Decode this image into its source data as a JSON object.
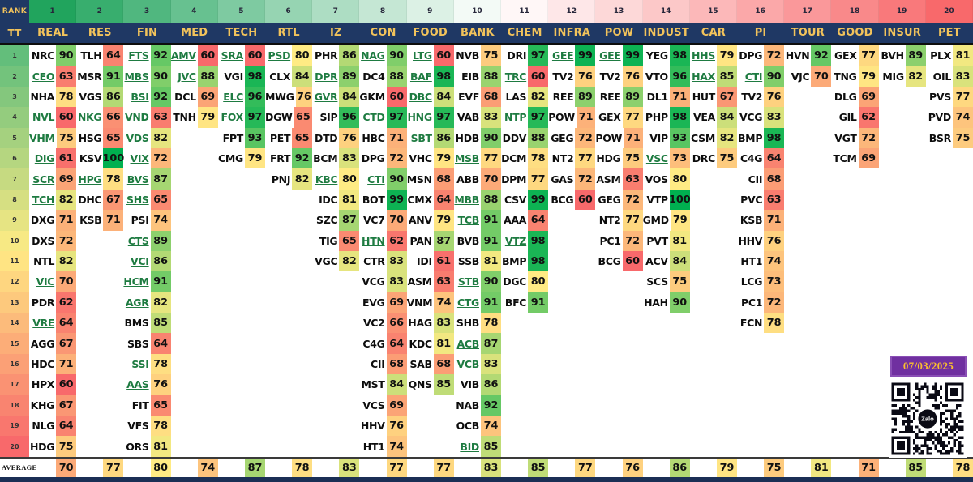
{
  "header": {
    "rank_label": "RANK",
    "tt_label": "TT"
  },
  "average_label": "AVERAGE",
  "date_badge": "07/03/2025",
  "qr_label": "Zalo",
  "colors": {
    "header_bg": "#1F3864",
    "header_text": "#F2C35B",
    "link_green": "#1E7B41",
    "badge_bg": "#7030A0",
    "badge_text": "#FBC02D",
    "scale_low": "#F8696B",
    "scale_mid": "#FFEB84",
    "scale_high": "#00B050"
  },
  "chart_data": {
    "type": "heatmap",
    "rank_ticks": [
      1,
      2,
      3,
      4,
      5,
      6,
      7,
      8,
      9,
      10,
      11,
      12,
      13,
      14,
      15,
      16,
      17,
      18,
      19,
      20
    ],
    "row_ticks": [
      1,
      2,
      3,
      4,
      5,
      6,
      7,
      8,
      9,
      10,
      11,
      12,
      13,
      14,
      15,
      16,
      17,
      18,
      19,
      20
    ],
    "score_scale": {
      "min": 60,
      "mid": 80,
      "max": 100
    },
    "sectors": [
      {
        "name": "REAL",
        "average": 70,
        "cells": [
          [
            "NRC",
            90,
            0
          ],
          [
            "CEO",
            63,
            1
          ],
          [
            "NHA",
            78,
            0
          ],
          [
            "NVL",
            60,
            1
          ],
          [
            "VHM",
            75,
            1
          ],
          [
            "DIG",
            61,
            1
          ],
          [
            "SCR",
            69,
            1
          ],
          [
            "TCH",
            82,
            1
          ],
          [
            "DXG",
            71,
            0
          ],
          [
            "DXS",
            72,
            0
          ],
          [
            "NTL",
            82,
            0
          ],
          [
            "VIC",
            70,
            1
          ],
          [
            "PDR",
            62,
            0
          ],
          [
            "VRE",
            64,
            1
          ],
          [
            "AGG",
            67,
            0
          ],
          [
            "HDC",
            71,
            0
          ],
          [
            "HPX",
            60,
            0
          ],
          [
            "KHG",
            67,
            0
          ],
          [
            "NLG",
            64,
            0
          ],
          [
            "HDG",
            75,
            0
          ]
        ]
      },
      {
        "name": "RES",
        "average": 77,
        "cells": [
          [
            "TLH",
            64,
            0
          ],
          [
            "MSR",
            91,
            0
          ],
          [
            "VGS",
            86,
            0
          ],
          [
            "NKG",
            66,
            1
          ],
          [
            "HSG",
            65,
            0
          ],
          [
            "KSV",
            100,
            0
          ],
          [
            "HPG",
            78,
            1
          ],
          [
            "DHC",
            67,
            0
          ],
          [
            "KSB",
            71,
            0
          ]
        ]
      },
      {
        "name": "FIN",
        "average": 80,
        "cells": [
          [
            "FTS",
            92,
            1
          ],
          [
            "MBS",
            90,
            1
          ],
          [
            "BSI",
            92,
            1
          ],
          [
            "VND",
            63,
            1
          ],
          [
            "VDS",
            82,
            1
          ],
          [
            "VIX",
            72,
            1
          ],
          [
            "BVS",
            87,
            1
          ],
          [
            "SHS",
            65,
            1
          ],
          [
            "PSI",
            74,
            0
          ],
          [
            "CTS",
            89,
            1
          ],
          [
            "VCI",
            86,
            1
          ],
          [
            "HCM",
            91,
            1
          ],
          [
            "AGR",
            82,
            1
          ],
          [
            "BMS",
            85,
            0
          ],
          [
            "SBS",
            64,
            0
          ],
          [
            "SSI",
            78,
            1
          ],
          [
            "AAS",
            76,
            1
          ],
          [
            "FIT",
            65,
            0
          ],
          [
            "VFS",
            78,
            0
          ],
          [
            "ORS",
            81,
            0
          ]
        ]
      },
      {
        "name": "MED",
        "average": 74,
        "cells": [
          [
            "AMV",
            60,
            1
          ],
          [
            "JVC",
            88,
            1
          ],
          [
            "DCL",
            69,
            0
          ],
          [
            "TNH",
            79,
            0
          ]
        ]
      },
      {
        "name": "TECH",
        "average": 87,
        "cells": [
          [
            "SRA",
            60,
            1
          ],
          [
            "VGI",
            98,
            0
          ],
          [
            "ELC",
            96,
            1
          ],
          [
            "FOX",
            97,
            1
          ],
          [
            "FPT",
            93,
            0
          ],
          [
            "CMG",
            79,
            0
          ]
        ]
      },
      {
        "name": "RTL",
        "average": 78,
        "cells": [
          [
            "PSD",
            80,
            1
          ],
          [
            "CLX",
            84,
            0
          ],
          [
            "MWG",
            76,
            0
          ],
          [
            "DGW",
            65,
            0
          ],
          [
            "PET",
            65,
            0
          ],
          [
            "FRT",
            92,
            0
          ],
          [
            "PNJ",
            82,
            0
          ]
        ]
      },
      {
        "name": "IZ",
        "average": 83,
        "cells": [
          [
            "PHR",
            86,
            0
          ],
          [
            "DPR",
            89,
            1
          ],
          [
            "GVR",
            84,
            1
          ],
          [
            "SIP",
            96,
            0
          ],
          [
            "DTD",
            76,
            0
          ],
          [
            "BCM",
            83,
            0
          ],
          [
            "KBC",
            80,
            1
          ],
          [
            "IDC",
            81,
            0
          ],
          [
            "SZC",
            87,
            0
          ],
          [
            "TIG",
            65,
            0
          ],
          [
            "VGC",
            82,
            0
          ]
        ]
      },
      {
        "name": "CON",
        "average": 77,
        "cells": [
          [
            "NAG",
            90,
            1
          ],
          [
            "DC4",
            88,
            0
          ],
          [
            "GKM",
            60,
            0
          ],
          [
            "CTD",
            97,
            1
          ],
          [
            "HBC",
            71,
            0
          ],
          [
            "DPG",
            72,
            0
          ],
          [
            "CTI",
            90,
            1
          ],
          [
            "BOT",
            99,
            0
          ],
          [
            "VC7",
            70,
            0
          ],
          [
            "HTN",
            62,
            1
          ],
          [
            "CTR",
            83,
            0
          ],
          [
            "VCG",
            83,
            0
          ],
          [
            "EVG",
            69,
            0
          ],
          [
            "VC2",
            66,
            0
          ],
          [
            "C4G",
            64,
            0
          ],
          [
            "CII",
            68,
            0
          ],
          [
            "MST",
            84,
            0
          ],
          [
            "VCS",
            69,
            0
          ],
          [
            "HHV",
            76,
            0
          ],
          [
            "HT1",
            74,
            0
          ]
        ]
      },
      {
        "name": "FOOD",
        "average": 77,
        "cells": [
          [
            "LTG",
            60,
            1
          ],
          [
            "BAF",
            98,
            1
          ],
          [
            "DBC",
            84,
            1
          ],
          [
            "HNG",
            97,
            1
          ],
          [
            "SBT",
            86,
            1
          ],
          [
            "VHC",
            79,
            0
          ],
          [
            "MSN",
            68,
            0
          ],
          [
            "CMX",
            64,
            0
          ],
          [
            "ANV",
            79,
            0
          ],
          [
            "PAN",
            87,
            0
          ],
          [
            "IDI",
            61,
            0
          ],
          [
            "ASM",
            63,
            0
          ],
          [
            "VNM",
            74,
            0
          ],
          [
            "HAG",
            83,
            0
          ],
          [
            "KDC",
            81,
            0
          ],
          [
            "SAB",
            68,
            0
          ],
          [
            "QNS",
            85,
            0
          ]
        ]
      },
      {
        "name": "BANK",
        "average": 83,
        "cells": [
          [
            "NVB",
            75,
            0
          ],
          [
            "EIB",
            88,
            0
          ],
          [
            "EVF",
            68,
            0
          ],
          [
            "VAB",
            83,
            0
          ],
          [
            "HDB",
            90,
            0
          ],
          [
            "MSB",
            77,
            1
          ],
          [
            "ABB",
            70,
            0
          ],
          [
            "MBB",
            88,
            1
          ],
          [
            "TCB",
            91,
            1
          ],
          [
            "BVB",
            91,
            0
          ],
          [
            "SSB",
            81,
            0
          ],
          [
            "STB",
            90,
            1
          ],
          [
            "CTG",
            91,
            1
          ],
          [
            "SHB",
            78,
            0
          ],
          [
            "ACB",
            87,
            1
          ],
          [
            "VCB",
            83,
            1
          ],
          [
            "VIB",
            86,
            0
          ],
          [
            "NAB",
            92,
            0
          ],
          [
            "OCB",
            74,
            0
          ],
          [
            "BID",
            85,
            1
          ]
        ]
      },
      {
        "name": "CHEM",
        "average": 85,
        "cells": [
          [
            "DRI",
            97,
            0
          ],
          [
            "TRC",
            60,
            1
          ],
          [
            "LAS",
            82,
            0
          ],
          [
            "NTP",
            97,
            1
          ],
          [
            "DDV",
            88,
            0
          ],
          [
            "DCM",
            78,
            0
          ],
          [
            "DPM",
            77,
            0
          ],
          [
            "CSV",
            99,
            0
          ],
          [
            "AAA",
            64,
            0
          ],
          [
            "VTZ",
            98,
            1
          ],
          [
            "BMP",
            98,
            0
          ],
          [
            "DGC",
            80,
            0
          ],
          [
            "BFC",
            91,
            0
          ]
        ]
      },
      {
        "name": "INFRA",
        "average": 77,
        "cells": [
          [
            "GEE",
            99,
            1
          ],
          [
            "TV2",
            76,
            0
          ],
          [
            "REE",
            89,
            0
          ],
          [
            "POW",
            71,
            0
          ],
          [
            "GEG",
            72,
            0
          ],
          [
            "NT2",
            77,
            0
          ],
          [
            "GAS",
            72,
            0
          ],
          [
            "BCG",
            60,
            0
          ]
        ]
      },
      {
        "name": "POW",
        "average": 76,
        "cells": [
          [
            "GEE",
            99,
            1
          ],
          [
            "TV2",
            76,
            0
          ],
          [
            "REE",
            89,
            0
          ],
          [
            "GEX",
            77,
            0
          ],
          [
            "POW",
            71,
            0
          ],
          [
            "HDG",
            75,
            0
          ],
          [
            "ASM",
            63,
            0
          ],
          [
            "GEG",
            72,
            0
          ],
          [
            "NT2",
            77,
            0
          ],
          [
            "PC1",
            72,
            0
          ],
          [
            "BCG",
            60,
            0
          ]
        ]
      },
      {
        "name": "INDUST",
        "average": 86,
        "cells": [
          [
            "YEG",
            98,
            0
          ],
          [
            "VTO",
            96,
            0
          ],
          [
            "DL1",
            71,
            0
          ],
          [
            "PHP",
            98,
            0
          ],
          [
            "VIP",
            93,
            0
          ],
          [
            "VSC",
            73,
            1
          ],
          [
            "VOS",
            80,
            0
          ],
          [
            "VTP",
            100,
            0
          ],
          [
            "GMD",
            79,
            0
          ],
          [
            "PVT",
            81,
            0
          ],
          [
            "ACV",
            84,
            0
          ],
          [
            "SCS",
            75,
            0
          ],
          [
            "HAH",
            90,
            0
          ]
        ]
      },
      {
        "name": "CAR",
        "average": 79,
        "cells": [
          [
            "HHS",
            79,
            1
          ],
          [
            "HAX",
            85,
            1
          ],
          [
            "HUT",
            67,
            0
          ],
          [
            "VEA",
            84,
            0
          ],
          [
            "CSM",
            82,
            0
          ],
          [
            "DRC",
            75,
            0
          ]
        ]
      },
      {
        "name": "PI",
        "average": 75,
        "cells": [
          [
            "DPG",
            72,
            0
          ],
          [
            "CTI",
            90,
            1
          ],
          [
            "TV2",
            76,
            0
          ],
          [
            "VCG",
            83,
            0
          ],
          [
            "BMP",
            98,
            0
          ],
          [
            "C4G",
            64,
            0
          ],
          [
            "CII",
            68,
            0
          ],
          [
            "PVC",
            63,
            0
          ],
          [
            "KSB",
            71,
            0
          ],
          [
            "HHV",
            76,
            0
          ],
          [
            "HT1",
            74,
            0
          ],
          [
            "LCG",
            73,
            0
          ],
          [
            "PC1",
            72,
            0
          ],
          [
            "FCN",
            78,
            0
          ]
        ]
      },
      {
        "name": "TOUR",
        "average": 81,
        "cells": [
          [
            "HVN",
            92,
            0
          ],
          [
            "VJC",
            70,
            0
          ]
        ]
      },
      {
        "name": "GOOD",
        "average": 71,
        "cells": [
          [
            "GEX",
            77,
            0
          ],
          [
            "TNG",
            79,
            0
          ],
          [
            "DLG",
            69,
            0
          ],
          [
            "GIL",
            62,
            0
          ],
          [
            "VGT",
            72,
            0
          ],
          [
            "TCM",
            69,
            0
          ]
        ]
      },
      {
        "name": "INSUR",
        "average": 85,
        "cells": [
          [
            "BVH",
            89,
            0
          ],
          [
            "MIG",
            82,
            0
          ]
        ]
      },
      {
        "name": "PET",
        "average": 78,
        "cells": [
          [
            "PLX",
            81,
            0
          ],
          [
            "OIL",
            83,
            0
          ],
          [
            "PVS",
            77,
            0
          ],
          [
            "PVD",
            74,
            0
          ],
          [
            "BSR",
            75,
            0
          ]
        ]
      }
    ]
  }
}
